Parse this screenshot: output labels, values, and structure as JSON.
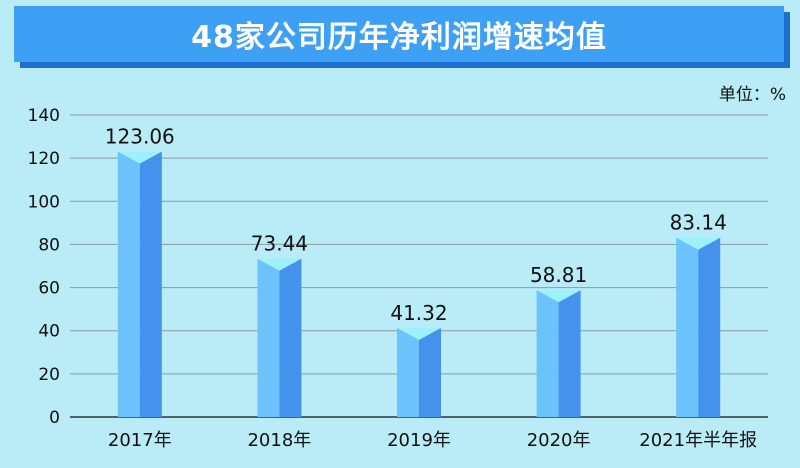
{
  "title": "48家公司历年净利润增速均值",
  "unit_label": "单位：%",
  "colors": {
    "background": "#b9ecf7",
    "title_bar": "#3da0f5",
    "title_shadow": "#1d6fd0",
    "bar_left": "#6cc3fb",
    "bar_right": "#4592ee",
    "bar_top": "#9cf1fa"
  },
  "chart_data": {
    "type": "bar",
    "categories": [
      "2017年",
      "2018年",
      "2019年",
      "2020年",
      "2021年半年报"
    ],
    "values": [
      123.06,
      73.44,
      41.32,
      58.81,
      83.14
    ],
    "value_labels": [
      "123.06",
      "73.44",
      "41.32",
      "58.81",
      "83.14"
    ],
    "ylim": [
      0,
      140
    ],
    "yticks": [
      0,
      20,
      40,
      60,
      80,
      100,
      120,
      140
    ],
    "grid": true,
    "xlabel": "",
    "ylabel": ""
  }
}
